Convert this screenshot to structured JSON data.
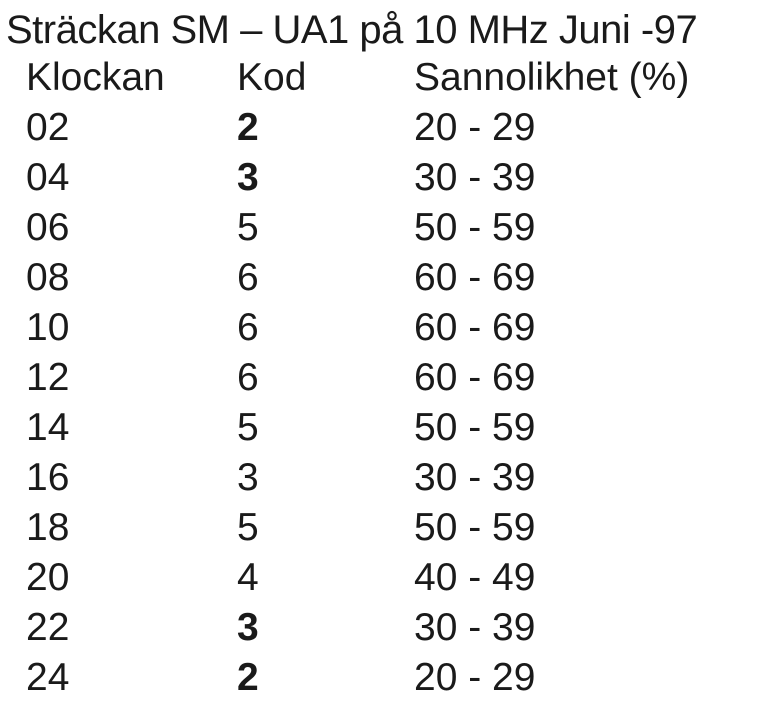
{
  "title": "Sträckan SM – UA1 på 10 MHz  Juni -97",
  "columns": [
    "Klockan",
    "Kod",
    "Sannolikhet (%)"
  ],
  "rows": [
    {
      "klockan": "02",
      "kod": "2",
      "sannolikhet": "20 - 29",
      "kod_bold": true
    },
    {
      "klockan": "04",
      "kod": "3",
      "sannolikhet": "30 - 39",
      "kod_bold": true
    },
    {
      "klockan": "06",
      "kod": "5",
      "sannolikhet": "50 - 59",
      "kod_bold": false
    },
    {
      "klockan": "08",
      "kod": "6",
      "sannolikhet": "60 - 69",
      "kod_bold": false
    },
    {
      "klockan": "10",
      "kod": "6",
      "sannolikhet": "60 - 69",
      "kod_bold": false
    },
    {
      "klockan": "12",
      "kod": "6",
      "sannolikhet": "60 - 69",
      "kod_bold": false
    },
    {
      "klockan": "14",
      "kod": "5",
      "sannolikhet": "50 - 59",
      "kod_bold": false
    },
    {
      "klockan": "16",
      "kod": "3",
      "sannolikhet": "30 - 39",
      "kod_bold": false
    },
    {
      "klockan": "18",
      "kod": "5",
      "sannolikhet": "50 - 59",
      "kod_bold": false
    },
    {
      "klockan": "20",
      "kod": "4",
      "sannolikhet": "40 - 49",
      "kod_bold": false
    },
    {
      "klockan": "22",
      "kod": "3",
      "sannolikhet": "30 - 39",
      "kod_bold": true
    },
    {
      "klockan": "24",
      "kod": "2",
      "sannolikhet": "20 - 29",
      "kod_bold": true
    }
  ]
}
